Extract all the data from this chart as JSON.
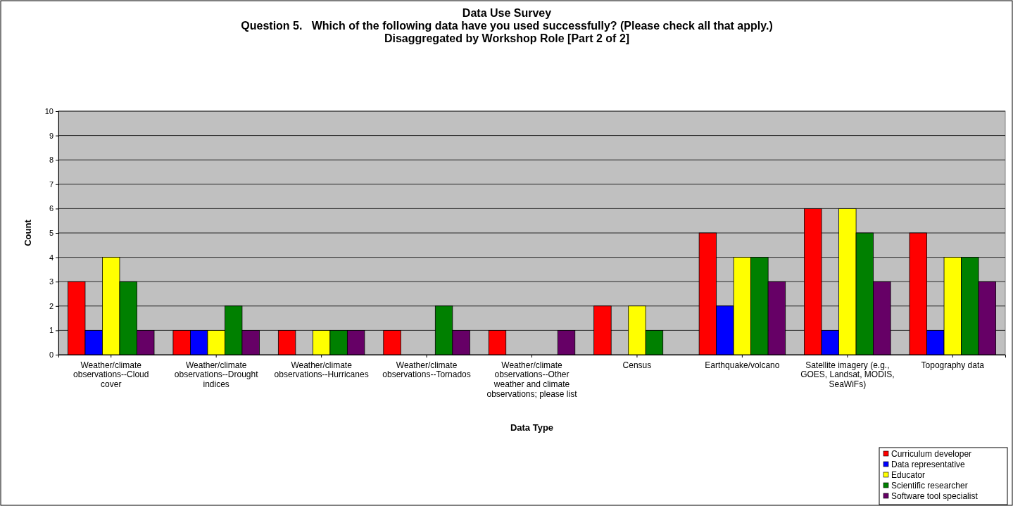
{
  "chart_data": {
    "type": "bar",
    "title": "Data Use Survey",
    "subtitle": "Question 5.   Which of the following data have you used successfully? (Please check all that apply.)\nDisaggregated by Workshop Role [Part 2 of 2]",
    "xlabel": "Data Type",
    "ylabel": "Count",
    "categories": [
      "Weather/climate observations--Cloud cover",
      "Weather/climate observations--Drought indices",
      "Weather/climate observations--Hurricanes",
      "Weather/climate observations--Tornados",
      "Weather/climate observations--Other weather and climate observations; please list",
      "Census",
      "Earthquake/volcano",
      "Satellite imagery (e.g., GOES, Landsat, MODIS, SeaWiFs)",
      "Topography data"
    ],
    "series": [
      {
        "name": "Curriculum developer",
        "color": "#ff0000",
        "values": [
          3,
          1,
          1,
          1,
          1,
          2,
          5,
          6,
          5
        ]
      },
      {
        "name": "Data representative",
        "color": "#0000ff",
        "values": [
          1,
          1,
          0,
          0,
          0,
          0,
          2,
          1,
          1
        ]
      },
      {
        "name": "Educator",
        "color": "#ffff00",
        "values": [
          4,
          1,
          1,
          0,
          0,
          2,
          4,
          6,
          4
        ]
      },
      {
        "name": "Scientific researcher",
        "color": "#008000",
        "values": [
          3,
          2,
          1,
          2,
          0,
          1,
          4,
          5,
          4
        ]
      },
      {
        "name": "Software tool specialist",
        "color": "#660066",
        "values": [
          1,
          1,
          1,
          1,
          1,
          0,
          3,
          3,
          3
        ]
      }
    ],
    "ylim": [
      0,
      10
    ],
    "yticks": [
      0,
      1,
      2,
      3,
      4,
      5,
      6,
      7,
      8,
      9,
      10
    ],
    "grid": "y",
    "legend": "bottom right"
  }
}
